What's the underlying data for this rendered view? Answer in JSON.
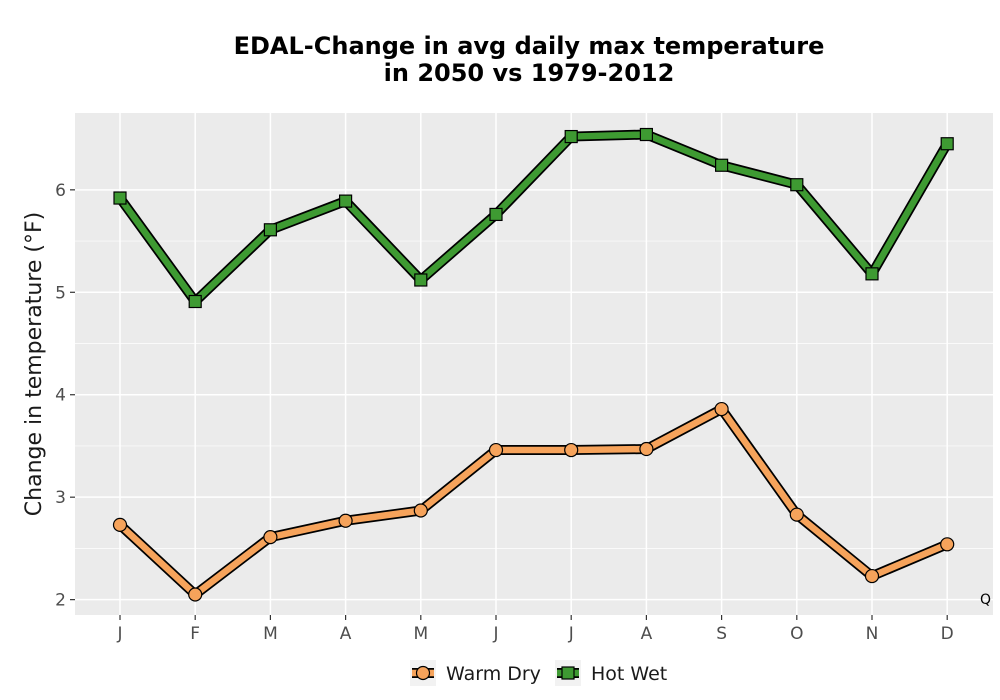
{
  "chart_data": {
    "type": "line",
    "title_line1": "EDAL-Change in avg daily max temperature",
    "title_line2": "in 2050 vs 1979-2012",
    "xlabel": "",
    "ylabel": "Change in temperature (°F)",
    "categories": [
      "J",
      "F",
      "M",
      "A",
      "M",
      "J",
      "J",
      "A",
      "S",
      "O",
      "N",
      "D"
    ],
    "ylim": [
      1.85,
      6.75
    ],
    "yticks": [
      2,
      3,
      4,
      5,
      6
    ],
    "grid": true,
    "legend_position": "bottom",
    "corner_label": "Q",
    "series": [
      {
        "name": "Warm Dry",
        "marker": "circle",
        "color": "#F6A35B",
        "values": [
          2.73,
          2.05,
          2.61,
          2.77,
          2.87,
          3.46,
          3.46,
          3.47,
          3.86,
          2.83,
          2.23,
          2.54
        ]
      },
      {
        "name": "Hot Wet",
        "marker": "square",
        "color": "#3E9A32",
        "values": [
          5.92,
          4.91,
          5.61,
          5.89,
          5.12,
          5.76,
          6.52,
          6.54,
          6.24,
          6.05,
          5.18,
          6.45
        ]
      }
    ]
  }
}
